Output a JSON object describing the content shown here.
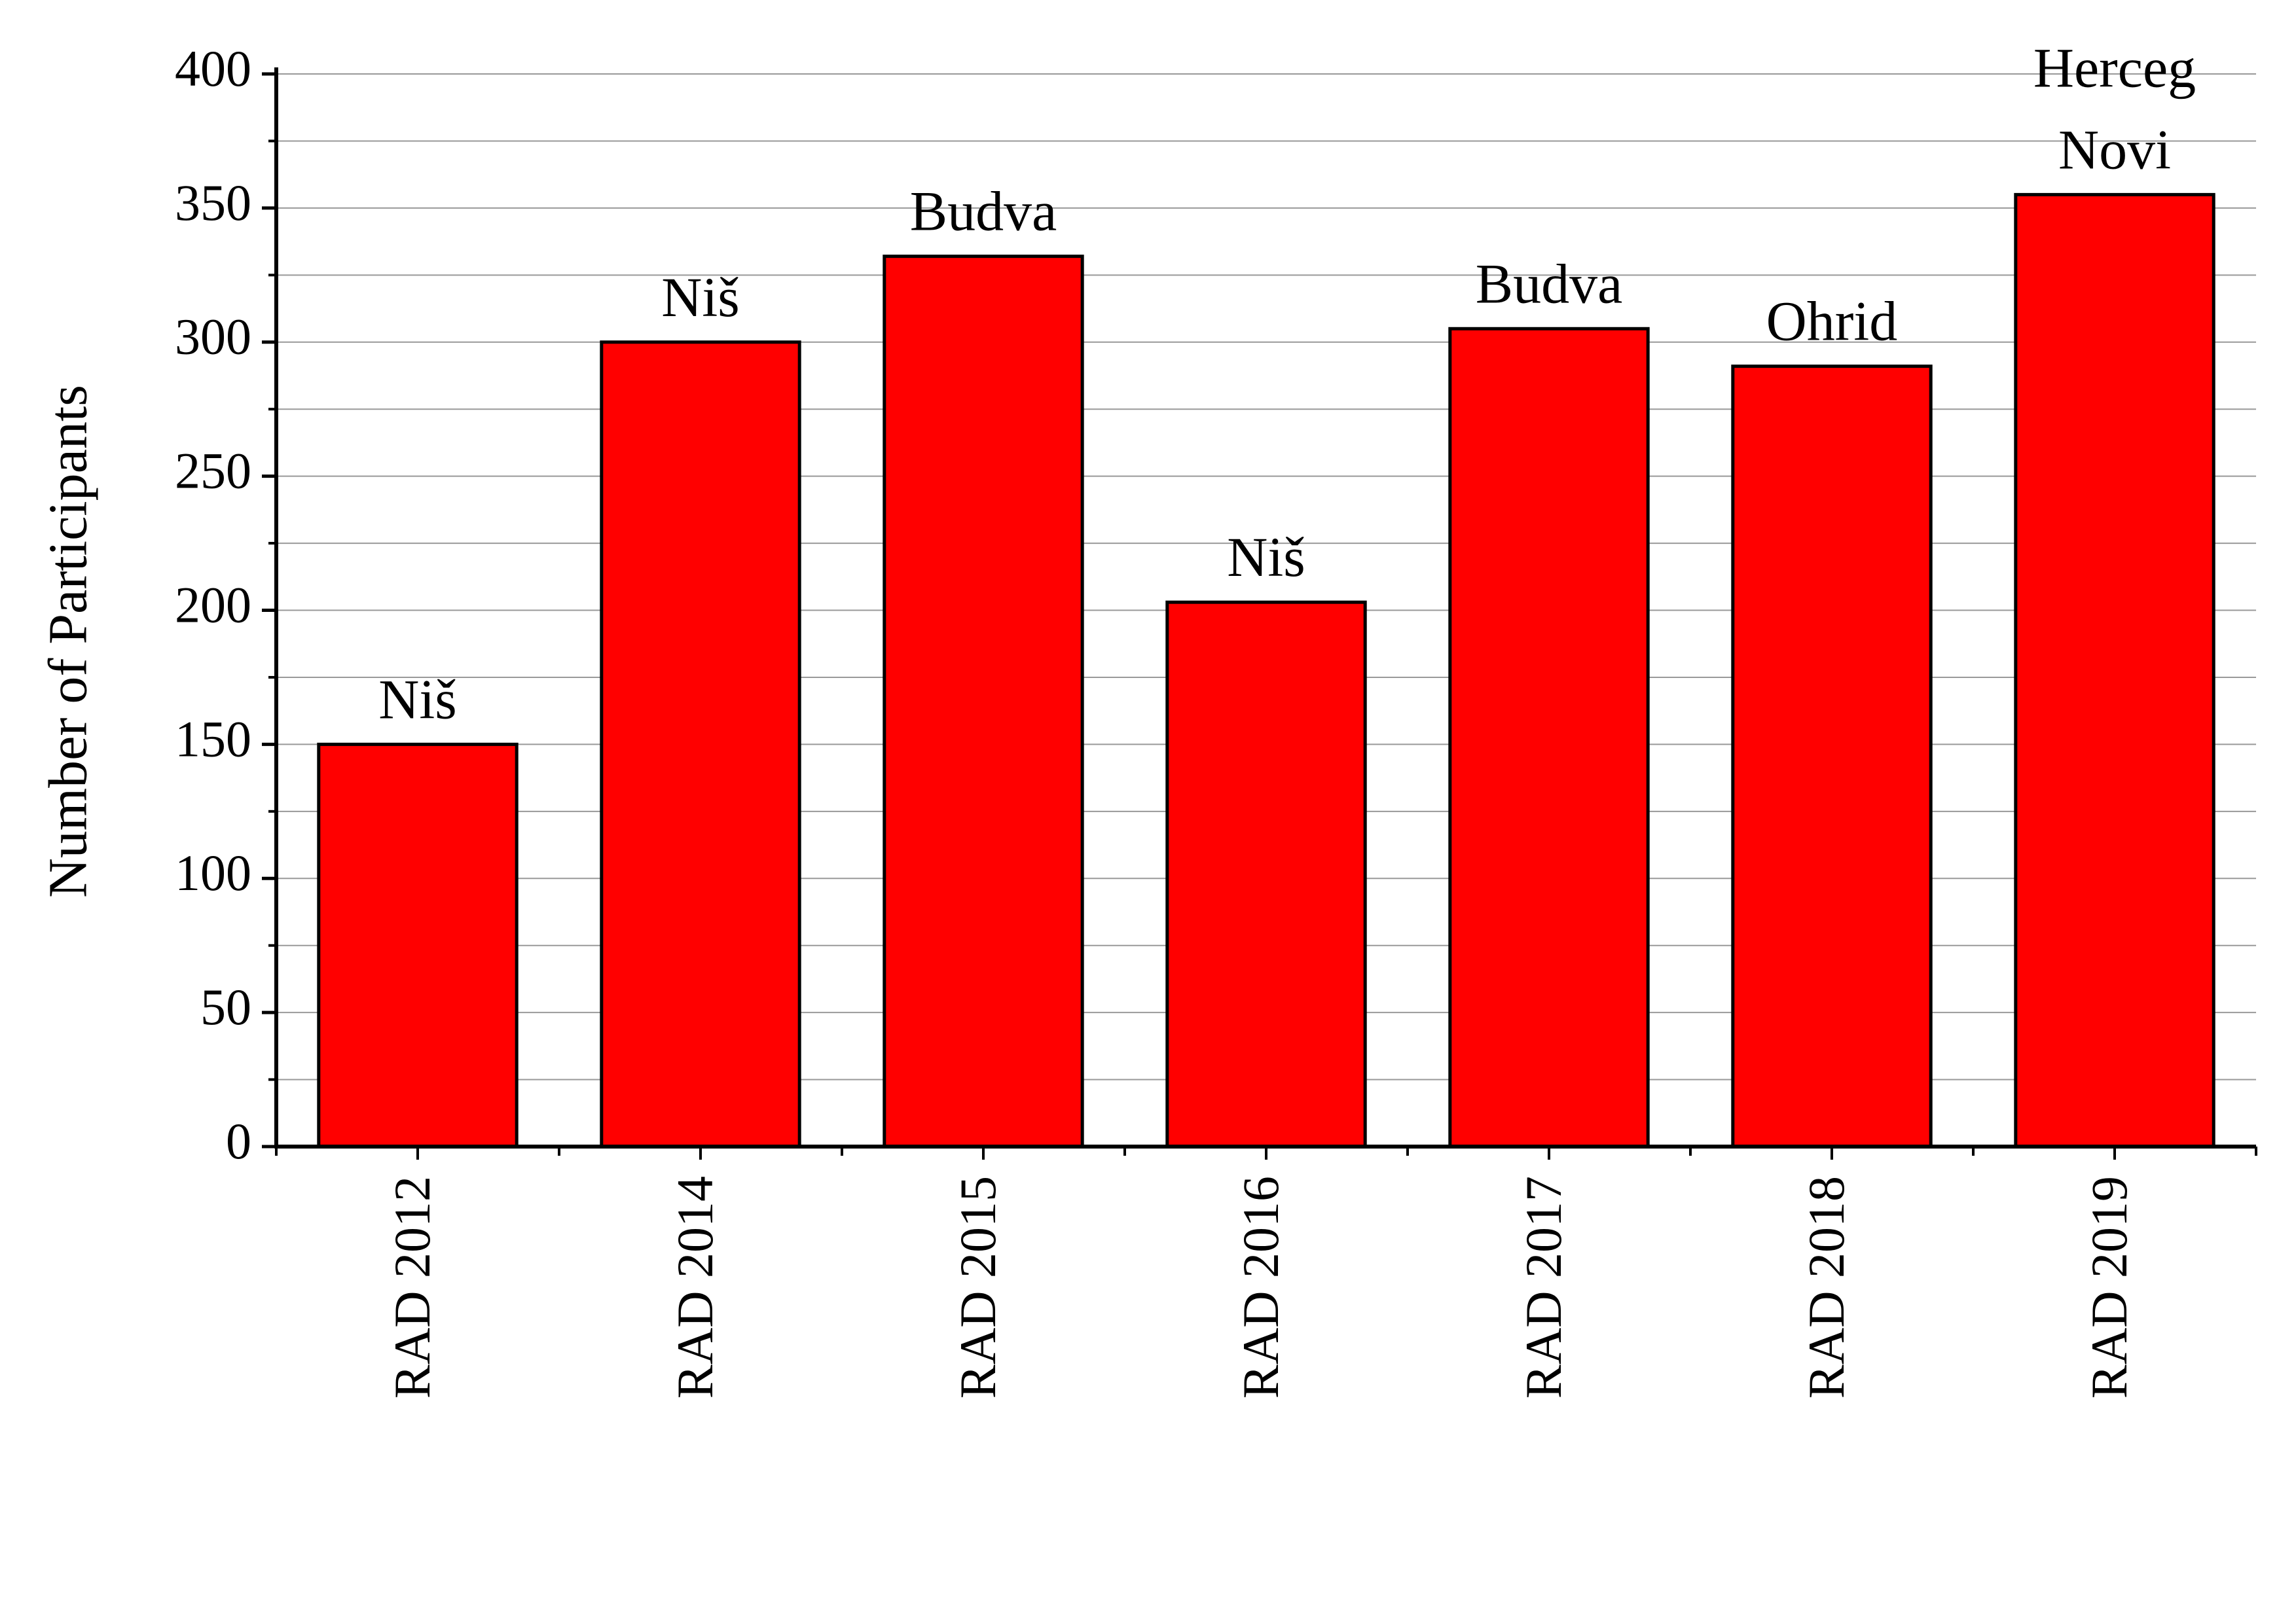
{
  "chart_data": {
    "type": "bar",
    "y_label": "Number of Participants",
    "categories": [
      "RAD 2012",
      "RAD 2014",
      "RAD 2015",
      "RAD 2016",
      "RAD 2017",
      "RAD 2018",
      "RAD 2019"
    ],
    "values": [
      150,
      300,
      332,
      203,
      305,
      291,
      355
    ],
    "annotations": [
      [
        "Niš"
      ],
      [
        "Niš"
      ],
      [
        "Budva"
      ],
      [
        "Niš"
      ],
      [
        "Budva"
      ],
      [
        "Ohrid"
      ],
      [
        "Herceg",
        "Novi"
      ]
    ],
    "color": "#ff0000",
    "ylim": [
      0,
      400
    ],
    "yticks": [
      0,
      50,
      100,
      150,
      200,
      250,
      300,
      350,
      400
    ],
    "minor_yticks": [
      25,
      75,
      125,
      175,
      225,
      275,
      325,
      375
    ],
    "grid": true
  }
}
